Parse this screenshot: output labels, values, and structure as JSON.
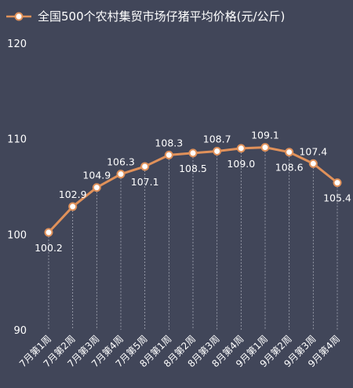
{
  "chart_data": {
    "type": "line",
    "title": "全国500个农村集贸市场仔猪平均价格(元/公斤)",
    "categories": [
      "7月第1周",
      "7月第2周",
      "7月第3周",
      "7月第4周",
      "7月第5周",
      "8月第1周",
      "8月第2周",
      "8月第3周",
      "8月第4周",
      "9月第1周",
      "9月第2周",
      "9月第3周",
      "9月第4周"
    ],
    "series": [
      {
        "name": "全国500个农村集贸市场仔猪平均价格(元/公斤)",
        "values": [
          100.2,
          102.9,
          104.9,
          106.3,
          107.1,
          108.3,
          108.5,
          108.7,
          109.0,
          109.1,
          108.6,
          107.4,
          105.4
        ],
        "value_labels": [
          "100.2",
          "102.9",
          "104.9",
          "106.3",
          "107.1",
          "108.3",
          "108.5",
          "108.7",
          "109.0",
          "109.1",
          "108.6",
          "107.4",
          "105.4"
        ]
      }
    ],
    "ylim": [
      90,
      120
    ],
    "yticks": [
      "90",
      "100",
      "110",
      "120"
    ],
    "grid": false,
    "legend": "top-left",
    "colors": {
      "background": "#414659",
      "line": "#E0915A",
      "marker_fill": "#ffffff",
      "text": "#ffffff",
      "drop_line": "#a7abb8"
    }
  }
}
